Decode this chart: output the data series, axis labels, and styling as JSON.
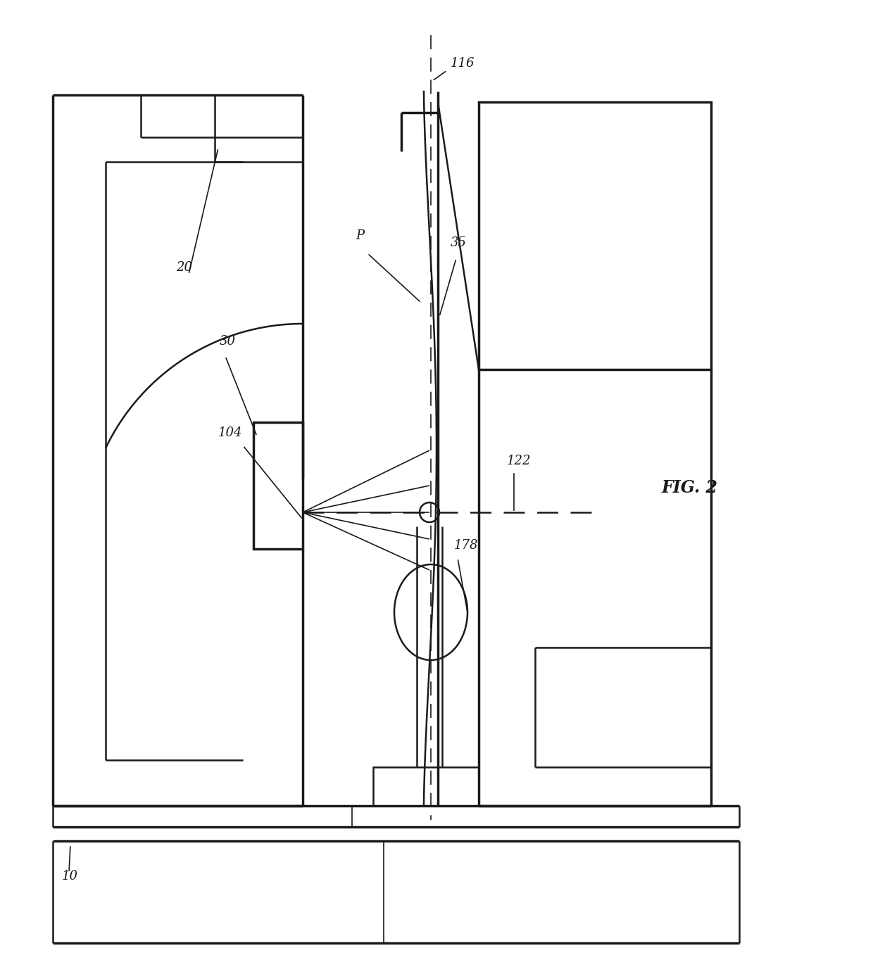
{
  "fig_label": "FIG. 2",
  "lc": "#1a1a1a",
  "bg": "#ffffff",
  "lw_thin": 1.2,
  "lw_med": 1.8,
  "lw_thick": 2.5,
  "fs_label": 13
}
